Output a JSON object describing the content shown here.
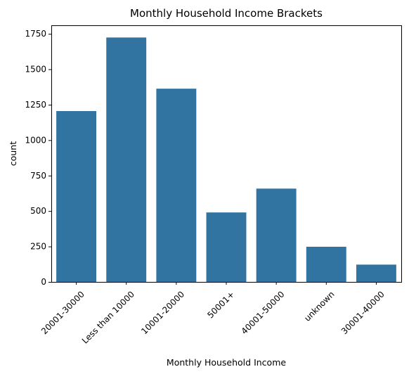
{
  "chart_data": {
    "type": "bar",
    "title": "Monthly Household Income Brackets",
    "xlabel": "Monthly Household Income",
    "ylabel": "count",
    "categories": [
      "20001-30000",
      "Less than 10000",
      "10001-20000",
      "50001+",
      "40001-50000",
      "unknown",
      "30001-40000"
    ],
    "values": [
      1205,
      1724,
      1363,
      490,
      658,
      248,
      122
    ],
    "ylim": [
      0,
      1810
    ],
    "yticks": [
      0,
      250,
      500,
      750,
      1000,
      1250,
      1500,
      1750
    ],
    "bar_color": "#3274a1",
    "grid": false,
    "legend": "none"
  }
}
